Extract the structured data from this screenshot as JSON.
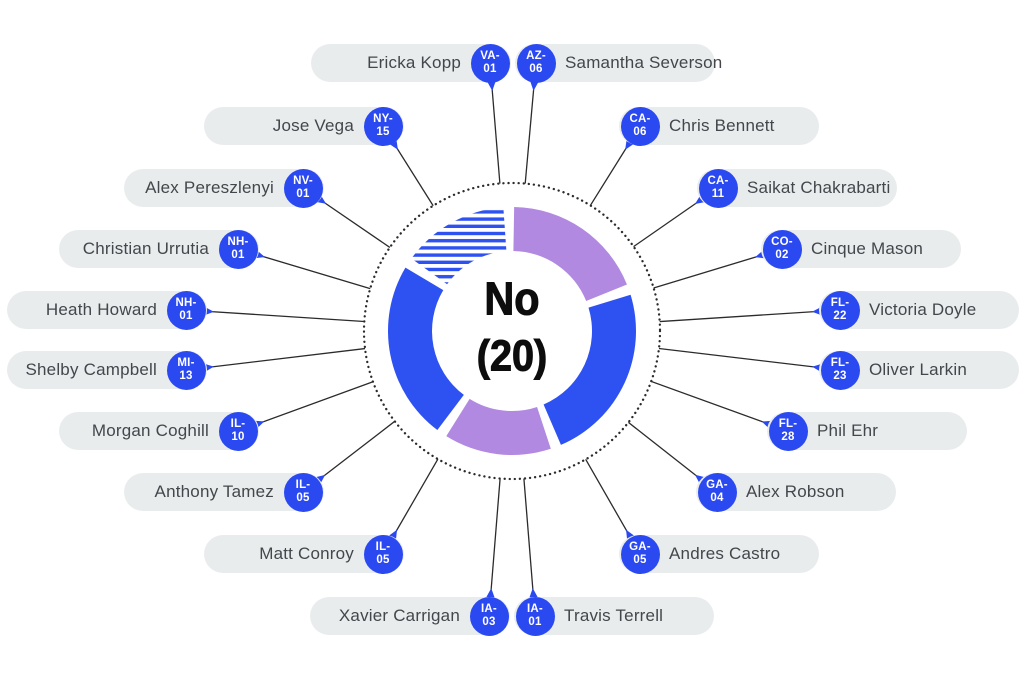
{
  "colors": {
    "badge_blue": "#2b49f0",
    "donut_blue": "#2e52f1",
    "donut_purple": "#b289e1",
    "pill_bg": "#e9eced",
    "name_text": "#43474b",
    "line": "#2b2b2b",
    "center_text": "#0d0d0d"
  },
  "center": {
    "label": "No",
    "count": "(20)"
  },
  "chart_data": {
    "type": "pie",
    "subtype": "donut",
    "title": "No (20)",
    "total": 20,
    "center_text": [
      "No",
      "(20)"
    ],
    "legend": "none",
    "segments": [
      {
        "name": "segment-1-top-right",
        "value": 4,
        "color": "#b289e1",
        "fill": "solid"
      },
      {
        "name": "segment-2-right",
        "value": 5,
        "color": "#2e52f1",
        "fill": "solid"
      },
      {
        "name": "segment-3-bottom",
        "value": 3,
        "color": "#b289e1",
        "fill": "solid"
      },
      {
        "name": "segment-4-left",
        "value": 5,
        "color": "#2e52f1",
        "fill": "solid"
      },
      {
        "name": "segment-5-top-left",
        "value": 3,
        "color": "#2e52f1",
        "fill": "striped"
      }
    ]
  },
  "left_column": [
    {
      "name": "Ericka Kopp",
      "district": "VA-01"
    },
    {
      "name": "Jose Vega",
      "district": "NY-15"
    },
    {
      "name": "Alex Pereszlenyi",
      "district": "NV-01"
    },
    {
      "name": "Christian Urrutia",
      "district": "NH-01"
    },
    {
      "name": "Heath Howard",
      "district": "NH-01"
    },
    {
      "name": "Shelby Campbell",
      "district": "MI-13"
    },
    {
      "name": "Morgan Coghill",
      "district": "IL-10"
    },
    {
      "name": "Anthony Tamez",
      "district": "IL-05"
    },
    {
      "name": "Matt Conroy",
      "district": "IL-05"
    },
    {
      "name": "Xavier Carrigan",
      "district": "IA-03"
    }
  ],
  "right_column": [
    {
      "name": "Samantha Severson",
      "district": "AZ-06"
    },
    {
      "name": "Chris Bennett",
      "district": "CA-06"
    },
    {
      "name": "Saikat Chakrabarti",
      "district": "CA-11"
    },
    {
      "name": "Cinque Mason",
      "district": "CO-02"
    },
    {
      "name": "Victoria Doyle",
      "district": "FL-22"
    },
    {
      "name": "Oliver Larkin",
      "district": "FL-23"
    },
    {
      "name": "Phil Ehr",
      "district": "FL-28"
    },
    {
      "name": "Alex Robson",
      "district": "GA-04"
    },
    {
      "name": "Andres Castro",
      "district": "GA-05"
    },
    {
      "name": "Travis Terrell",
      "district": "IA-01"
    }
  ]
}
